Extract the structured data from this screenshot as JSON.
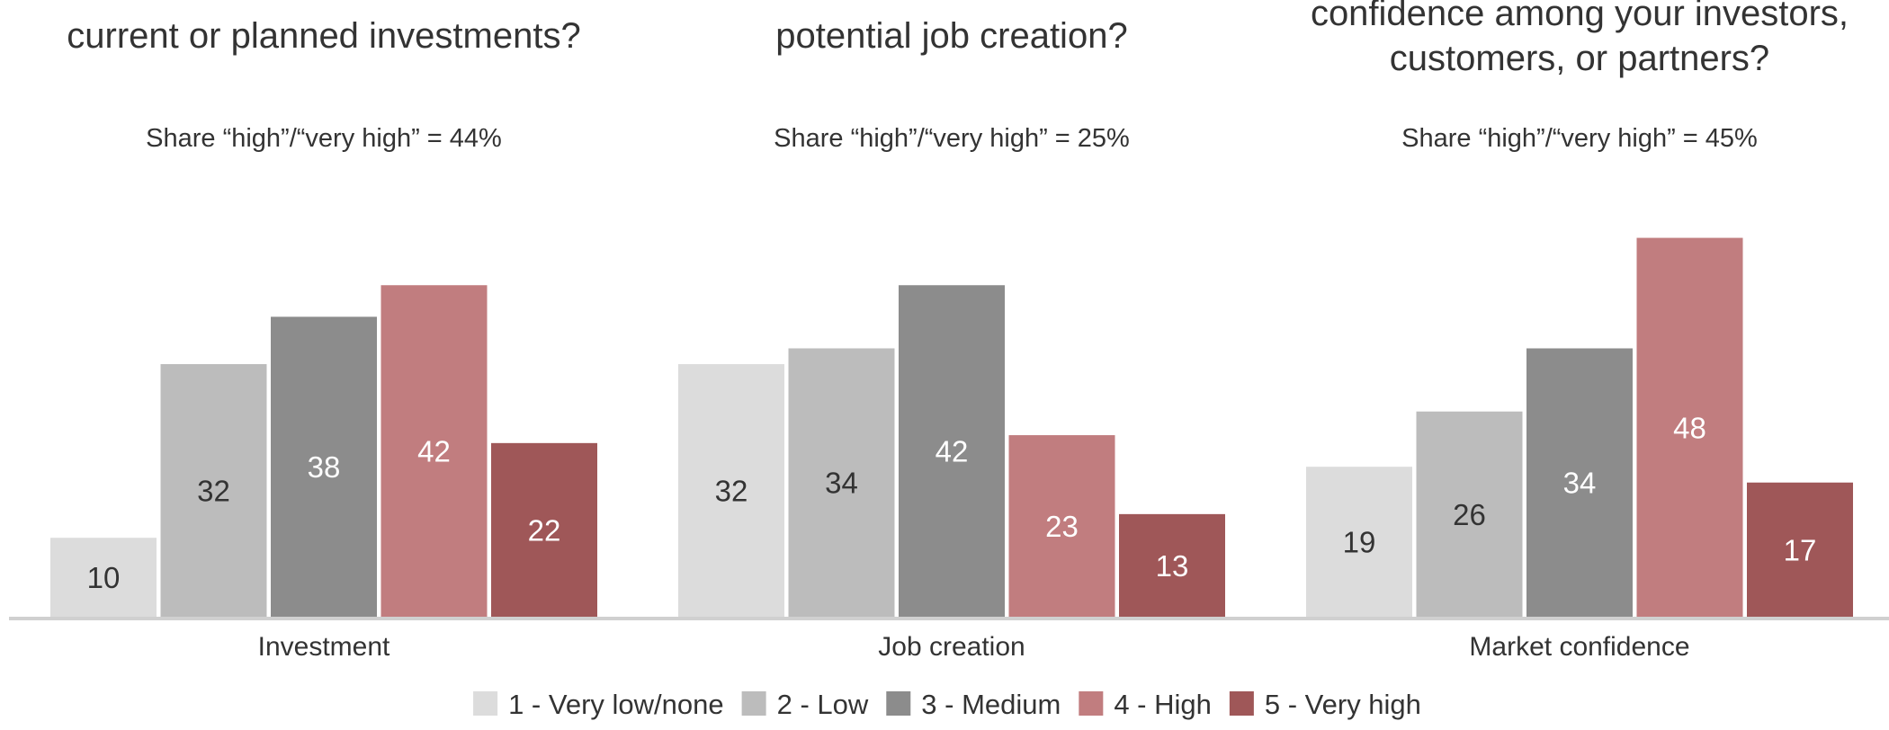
{
  "chart_data": {
    "type": "bar",
    "grouping": "clustered",
    "categories": [
      "Investment",
      "Job creation",
      "Market confidence"
    ],
    "panel_titles": [
      [
        "current or planned investments?"
      ],
      [
        "potential job creation?"
      ],
      [
        "confidence among your investors,",
        "customers, or partners?"
      ]
    ],
    "share_labels": [
      "Share “high”/“very high” = 44%",
      "Share “high”/“very high” = 25%",
      "Share “high”/“very high” = 45%"
    ],
    "series": [
      {
        "name": "1 - Very low/none",
        "color": "#dcdcdc",
        "label_color": "#333333",
        "values": [
          10,
          32,
          19
        ]
      },
      {
        "name": "2 - Low",
        "color": "#bcbcbc",
        "label_color": "#333333",
        "values": [
          32,
          34,
          26
        ]
      },
      {
        "name": "3 - Medium",
        "color": "#8c8c8c",
        "label_color": "#ffffff",
        "values": [
          38,
          42,
          34
        ]
      },
      {
        "name": "4 - High",
        "color": "#c17d7f",
        "label_color": "#ffffff",
        "values": [
          42,
          23,
          48
        ]
      },
      {
        "name": "5 - Very high",
        "color": "#9f5758",
        "label_color": "#ffffff",
        "values": [
          22,
          13,
          17
        ]
      }
    ],
    "data_labels": true,
    "axis_line_color": "#d0d0d0",
    "ylim": [
      0,
      48
    ],
    "grid": false,
    "legend_position": "bottom-center"
  }
}
